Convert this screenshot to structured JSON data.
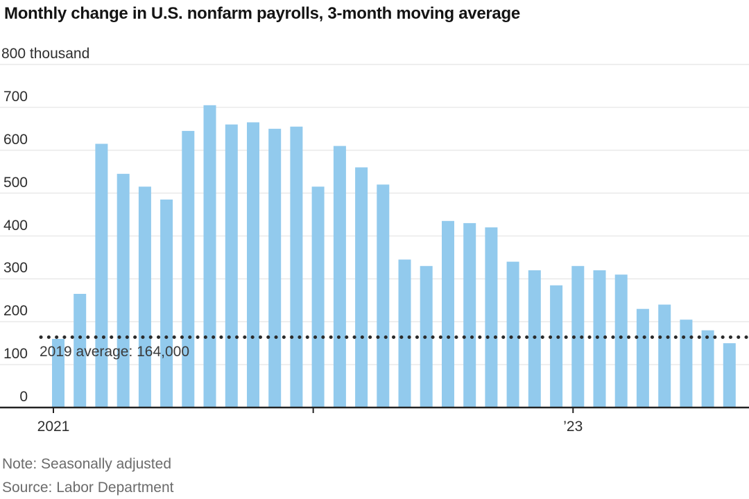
{
  "title": "Monthly change in U.S. nonfarm payrolls, 3-month moving average",
  "note": "Note: Seasonally adjusted",
  "source": "Source: Labor Department",
  "chart_data": {
    "type": "bar",
    "title": "Monthly change in U.S. nonfarm payrolls, 3-month moving average",
    "ylabel": "thousand",
    "unit_top_label": "800 thousand",
    "ylim": [
      0,
      800
    ],
    "y_ticks": [
      800,
      700,
      600,
      500,
      400,
      300,
      200,
      100,
      0
    ],
    "grid": "horizontal",
    "legend_position": "none",
    "categories": [
      "Jan 2021",
      "Feb 2021",
      "Mar 2021",
      "Apr 2021",
      "May 2021",
      "Jun 2021",
      "Jul 2021",
      "Aug 2021",
      "Sep 2021",
      "Oct 2021",
      "Nov 2021",
      "Dec 2021",
      "Jan 2022",
      "Feb 2022",
      "Mar 2022",
      "Apr 2022",
      "May 2022",
      "Jun 2022",
      "Jul 2022",
      "Aug 2022",
      "Sep 2022",
      "Oct 2022",
      "Nov 2022",
      "Dec 2022",
      "Jan 2023",
      "Feb 2023",
      "Mar 2023",
      "Apr 2023",
      "May 2023",
      "Jun 2023",
      "Jul 2023",
      "Aug 2023"
    ],
    "values": [
      160,
      265,
      615,
      545,
      515,
      485,
      645,
      705,
      660,
      665,
      650,
      655,
      515,
      610,
      560,
      520,
      345,
      330,
      435,
      430,
      420,
      340,
      320,
      285,
      330,
      320,
      310,
      230,
      240,
      205,
      180,
      150
    ],
    "x_ticks": [
      {
        "index": 0,
        "label": "2021"
      },
      {
        "index": 12,
        "label": ""
      },
      {
        "index": 24,
        "label": "’23"
      }
    ],
    "reference_line": {
      "value": 164,
      "label": "2019 average: 164,000"
    },
    "colors": {
      "bar": "#92caed",
      "grid": "#e9e9e9",
      "axis": "#222222",
      "tick": "#222222",
      "reference_dots": "#2b2b2b",
      "title_text": "#141414",
      "axis_text": "#2e2e2e",
      "muted_text": "#6b6b6b"
    }
  }
}
